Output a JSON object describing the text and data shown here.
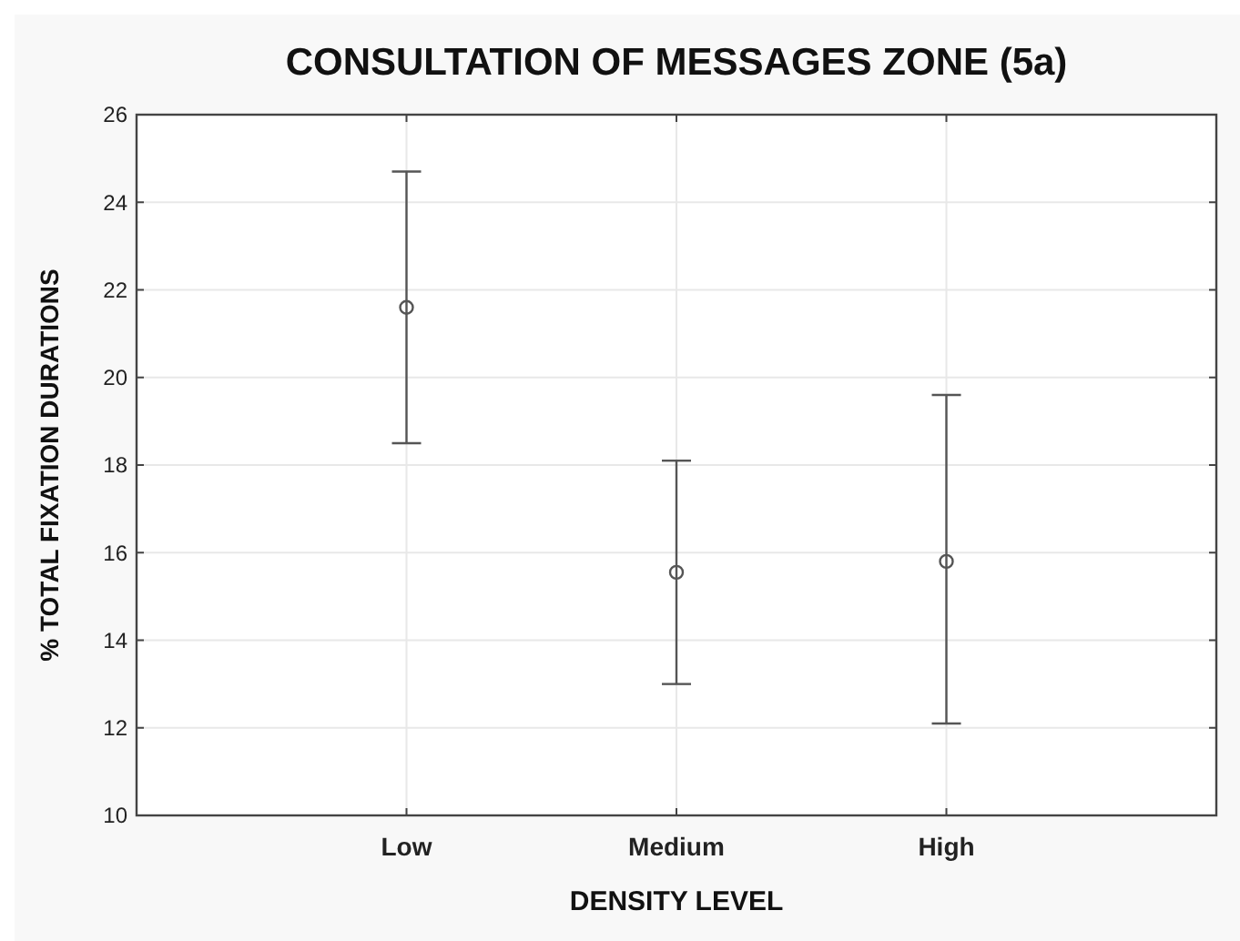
{
  "chart_data": {
    "type": "scatter",
    "title": "CONSULTATION OF MESSAGES ZONE (5a)",
    "xlabel": "DENSITY LEVEL",
    "ylabel": "% TOTAL FIXATION DURATIONS",
    "categories": [
      "Low",
      "Medium",
      "High"
    ],
    "series": [
      {
        "color": "#555555",
        "values": [
          21.6,
          15.55,
          15.8
        ],
        "errors": [
          [
            18.5,
            24.7
          ],
          [
            13.0,
            18.1
          ],
          [
            12.1,
            19.6
          ]
        ]
      }
    ],
    "ylim": [
      10,
      26
    ],
    "yticks": [
      10,
      12,
      14,
      16,
      18,
      20,
      22,
      24,
      26
    ],
    "grid": true,
    "marker": "circle"
  }
}
